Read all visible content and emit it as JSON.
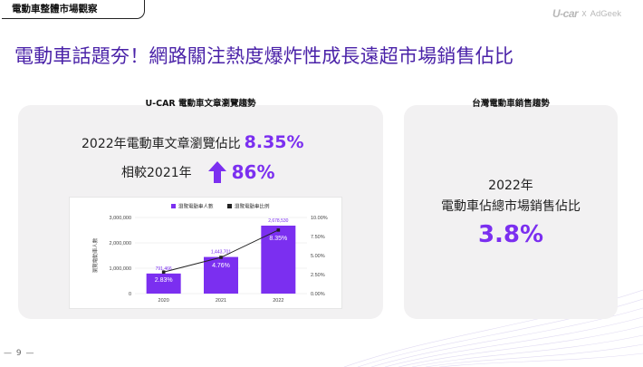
{
  "header": {
    "section_tag": "電動車整體市場觀察",
    "logo_ucar": "U-car",
    "logo_x": "X",
    "logo_adgeek": "AdGeek"
  },
  "headline": "電動車話題夯！網路關注熱度爆炸性成長遠超市場銷售佔比",
  "left_panel": {
    "title": "U-CAR 電動車文章瀏覽趨勢",
    "stat1_label": "2022年電動車文章瀏覽佔比",
    "stat1_value": "8.35%",
    "stat2_label": "相較2021年",
    "stat2_value": "86%",
    "arrow_color": "#7b2ff0"
  },
  "right_panel": {
    "title": "台灣電動車銷售趨勢",
    "year": "2022年",
    "label": "電動車佔總市場銷售佔比",
    "value": "3.8%"
  },
  "chart_data": {
    "type": "bar",
    "categories": [
      "2020",
      "2021",
      "2022"
    ],
    "series": [
      {
        "name": "瀏覽電動車人數",
        "kind": "bar",
        "axis": "left",
        "values": [
          791466,
          1443701,
          2678530
        ],
        "labels": [
          "791,466",
          "1,443,701",
          "2,678,530"
        ],
        "color": "#7b2ff0"
      },
      {
        "name": "瀏覽電動車比例",
        "kind": "line",
        "axis": "right",
        "values": [
          2.83,
          4.76,
          8.35
        ],
        "labels": [
          "2.83%",
          "4.76%",
          "8.35%"
        ],
        "color": "#222222"
      }
    ],
    "ylabel": "瀏覽電動車人數",
    "ylim": [
      0,
      3000000
    ],
    "yticks": [
      "0",
      "1,000,000",
      "2,000,000",
      "3,000,000"
    ],
    "y2lim": [
      0,
      10
    ],
    "y2ticks": [
      "0.00%",
      "2.50%",
      "5.00%",
      "7.50%",
      "10.00%"
    ],
    "legend": "top",
    "grid": true
  },
  "footer": {
    "page_number": "— 9 —"
  },
  "colors": {
    "accent": "#7b2ff0",
    "headline": "#4a22a8",
    "panel": "#f2f1f2"
  }
}
